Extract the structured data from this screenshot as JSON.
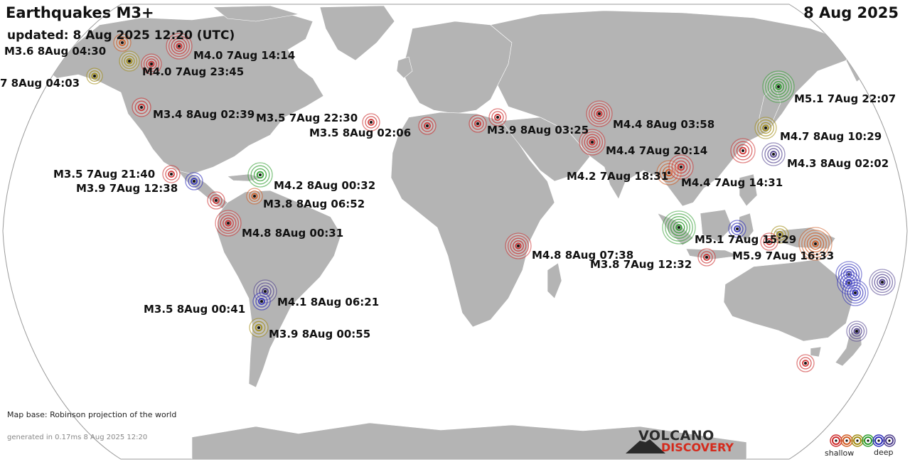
{
  "header": {
    "title": "Earthquakes M3+",
    "date": "8 Aug 2025",
    "updated": "updated:  8 Aug 2025 12:20 (UTC)"
  },
  "footer": {
    "map_base": "Map base: Robinson projection of the world",
    "generated": "generated in 0.17ms  8 Aug 2025 12:20",
    "logo_top": "VOLCANO",
    "logo_bottom": "DISCOVERY"
  },
  "legend": {
    "shallow": "shallow",
    "deep": "deep",
    "depth_colors": [
      "#cc2a2a",
      "#d05a20",
      "#a08a10",
      "#2a9a2a",
      "#2a2ab8",
      "#4a3a8a"
    ]
  },
  "colors": {
    "land": "#b4b4b4",
    "ocean": "#ffffff",
    "shallow": "#cc2a2a",
    "intermediate": "#a08a10",
    "green": "#2a9a2a",
    "deep": "#2a2ab8"
  },
  "quakes": [
    {
      "label": "M3.6  8Aug 04:30",
      "depth": "orange"
    },
    {
      "label": "M4.0  7Aug 14:14",
      "depth": "red"
    },
    {
      "label": "M4.0  7Aug 23:45",
      "depth": "red"
    },
    {
      "label": "7  8Aug 04:03",
      "depth": "olive"
    },
    {
      "label": "M3.4  8Aug 02:39",
      "depth": "red"
    },
    {
      "label": "M3.5  7Aug 22:30",
      "depth": "red"
    },
    {
      "label": "M3.5  8Aug 02:06",
      "depth": "red"
    },
    {
      "label": "M3.9  8Aug 03:25",
      "depth": "red"
    },
    {
      "label": "M4.4  8Aug 03:58",
      "depth": "red"
    },
    {
      "label": "M4.4  7Aug 20:14",
      "depth": "red"
    },
    {
      "label": "M5.1  7Aug 22:07",
      "depth": "green"
    },
    {
      "label": "M4.7  8Aug 10:29",
      "depth": "olive"
    },
    {
      "label": "M4.3  8Aug 02:02",
      "depth": "purple"
    },
    {
      "label": "M4.2  7Aug 18:31",
      "depth": "orange"
    },
    {
      "label": "M4.4  7Aug 14:31",
      "depth": "red"
    },
    {
      "label": "M3.5  7Aug 21:40",
      "depth": "red"
    },
    {
      "label": "M3.9  7Aug 12:38",
      "depth": "blue"
    },
    {
      "label": "M4.2  8Aug 00:32",
      "depth": "green"
    },
    {
      "label": "M3.8  8Aug 06:52",
      "depth": "orange"
    },
    {
      "label": "M4.8  8Aug 00:31",
      "depth": "red"
    },
    {
      "label": "M5.1  7Aug 15:29",
      "depth": "green"
    },
    {
      "label": "M5.9  7Aug 16:33",
      "depth": "orange"
    },
    {
      "label": "M4.8  8Aug 07:38",
      "depth": "red"
    },
    {
      "label": "M3.8  7Aug 12:32",
      "depth": "red"
    },
    {
      "label": "M4.1  8Aug 06:21",
      "depth": "purple"
    },
    {
      "label": "M3.5  8Aug 00:41",
      "depth": "blue"
    },
    {
      "label": "M3.9  8Aug 00:55",
      "depth": "olive"
    }
  ]
}
